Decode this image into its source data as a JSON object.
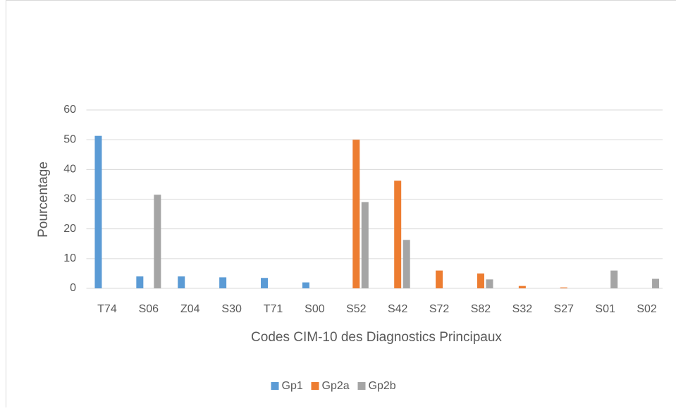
{
  "chart_data": {
    "type": "bar",
    "x_label": "Codes CIM-10 des Diagnostics Principaux",
    "y_label": "Pourcentage",
    "categories": [
      "T74",
      "S06",
      "Z04",
      "S30",
      "T71",
      "S00",
      "S52",
      "S42",
      "S72",
      "S82",
      "S32",
      "S27",
      "S01",
      "S02"
    ],
    "series": [
      {
        "name": "Gp1",
        "color": "#5b9bd5",
        "values": [
          51.3,
          4,
          4,
          3.7,
          3.5,
          2,
          0,
          0,
          0,
          0,
          0,
          0,
          0,
          0
        ]
      },
      {
        "name": "Gp2a",
        "color": "#ed7d31",
        "values": [
          0,
          0,
          0,
          0,
          0,
          0,
          50,
          36.2,
          6,
          5,
          0.8,
          0.3,
          0,
          0
        ]
      },
      {
        "name": "Gp2b",
        "color": "#a5a5a5",
        "values": [
          0,
          31.5,
          0,
          0,
          0,
          0,
          29,
          16.3,
          0,
          3,
          0,
          0,
          6,
          3.2
        ]
      }
    ],
    "ylim": [
      0,
      60
    ],
    "yticks": [
      0,
      10,
      20,
      30,
      40,
      50,
      60
    ],
    "grid": true,
    "legend": "bottom"
  }
}
